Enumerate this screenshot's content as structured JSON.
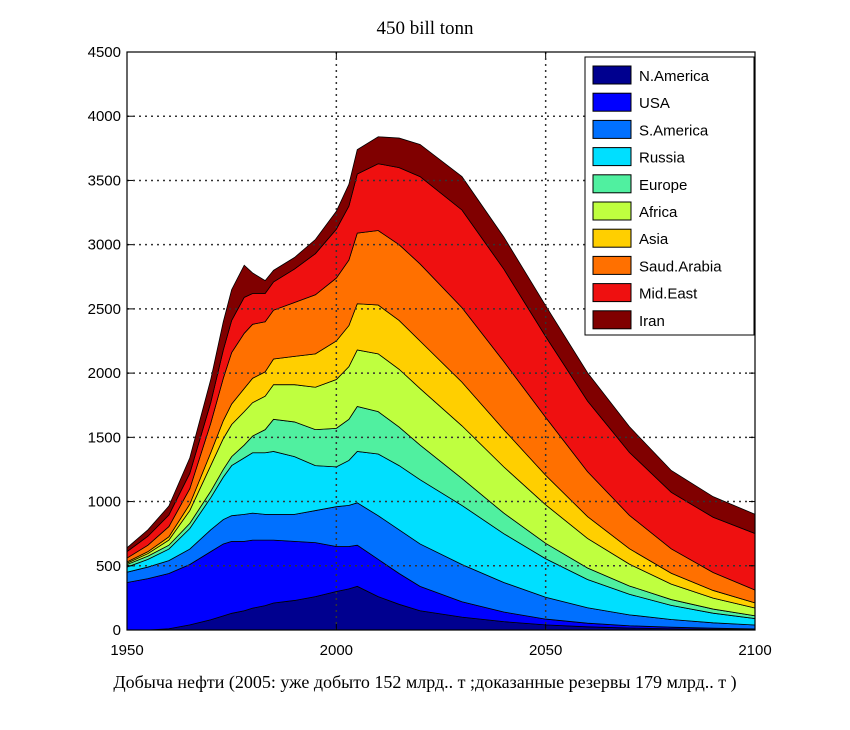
{
  "chart_data": {
    "type": "area",
    "title": "450 bill tonn",
    "caption": "Добыча нефти (2005: уже добыто 152 млрд.. т ;доказанные резервы  179 млрд.. т )",
    "xlabel": "",
    "ylabel": "",
    "xlim": [
      1950,
      2100
    ],
    "ylim": [
      0,
      4500
    ],
    "xticks": [
      1950,
      2000,
      2050,
      2100
    ],
    "yticks": [
      0,
      500,
      1000,
      1500,
      2000,
      2500,
      3000,
      3500,
      4000,
      4500
    ],
    "grid": true,
    "legend_position": "top-right",
    "stacked": true,
    "x": [
      1950,
      1955,
      1960,
      1965,
      1970,
      1973,
      1975,
      1978,
      1980,
      1983,
      1985,
      1990,
      1995,
      2000,
      2003,
      2005,
      2010,
      2015,
      2020,
      2030,
      2040,
      2050,
      2060,
      2070,
      2080,
      2090,
      2100
    ],
    "series": [
      {
        "name": "N.America",
        "color": "#00008f",
        "values": [
          0,
          0,
          10,
          40,
          80,
          110,
          130,
          150,
          170,
          190,
          210,
          230,
          260,
          300,
          320,
          340,
          260,
          200,
          150,
          100,
          65,
          40,
          25,
          15,
          10,
          6,
          4
        ]
      },
      {
        "name": "USA",
        "color": "#0000ff",
        "values": [
          370,
          400,
          430,
          470,
          530,
          560,
          560,
          540,
          530,
          510,
          490,
          460,
          420,
          350,
          330,
          320,
          290,
          240,
          190,
          120,
          75,
          45,
          28,
          18,
          12,
          8,
          5
        ]
      },
      {
        "name": "S.America",
        "color": "#0070ff",
        "values": [
          80,
          90,
          100,
          120,
          170,
          190,
          200,
          210,
          210,
          200,
          200,
          210,
          250,
          310,
          320,
          330,
          340,
          340,
          330,
          290,
          230,
          170,
          120,
          85,
          60,
          42,
          30
        ]
      },
      {
        "name": "Russia",
        "color": "#00dfff",
        "values": [
          40,
          60,
          90,
          160,
          250,
          330,
          390,
          440,
          470,
          480,
          490,
          450,
          350,
          310,
          350,
          400,
          480,
          500,
          500,
          460,
          380,
          300,
          220,
          160,
          110,
          75,
          50
        ]
      },
      {
        "name": "Europe",
        "color": "#50f0a0",
        "values": [
          20,
          25,
          30,
          40,
          50,
          60,
          70,
          100,
          130,
          180,
          250,
          270,
          280,
          300,
          320,
          350,
          330,
          300,
          270,
          210,
          160,
          120,
          90,
          65,
          45,
          32,
          22
        ]
      },
      {
        "name": "Africa",
        "color": "#bfff3f",
        "values": [
          10,
          20,
          40,
          100,
          200,
          240,
          250,
          260,
          260,
          260,
          270,
          290,
          330,
          380,
          410,
          440,
          450,
          450,
          440,
          410,
          360,
          300,
          230,
          170,
          120,
          85,
          60
        ]
      },
      {
        "name": "Asia",
        "color": "#ffcf00",
        "values": [
          10,
          15,
          25,
          50,
          100,
          140,
          160,
          180,
          190,
          190,
          200,
          220,
          260,
          300,
          320,
          360,
          380,
          380,
          370,
          340,
          290,
          230,
          170,
          120,
          85,
          60,
          40
        ]
      },
      {
        "name": "Saud.Arabia",
        "color": "#ff7000",
        "values": [
          30,
          50,
          80,
          120,
          230,
          330,
          400,
          430,
          420,
          390,
          380,
          420,
          460,
          490,
          510,
          550,
          580,
          590,
          600,
          580,
          530,
          450,
          350,
          260,
          190,
          140,
          100
        ]
      },
      {
        "name": "Mid.East",
        "color": "#ef1010",
        "values": [
          50,
          70,
          90,
          120,
          160,
          220,
          250,
          280,
          240,
          220,
          220,
          260,
          320,
          380,
          420,
          460,
          520,
          600,
          680,
          760,
          720,
          630,
          550,
          490,
          440,
          430,
          440
        ]
      },
      {
        "name": "Iran",
        "color": "#800000",
        "values": [
          30,
          50,
          70,
          120,
          180,
          220,
          240,
          250,
          160,
          100,
          90,
          90,
          110,
          140,
          170,
          190,
          210,
          230,
          250,
          260,
          250,
          240,
          220,
          200,
          170,
          160,
          150
        ]
      }
    ]
  }
}
